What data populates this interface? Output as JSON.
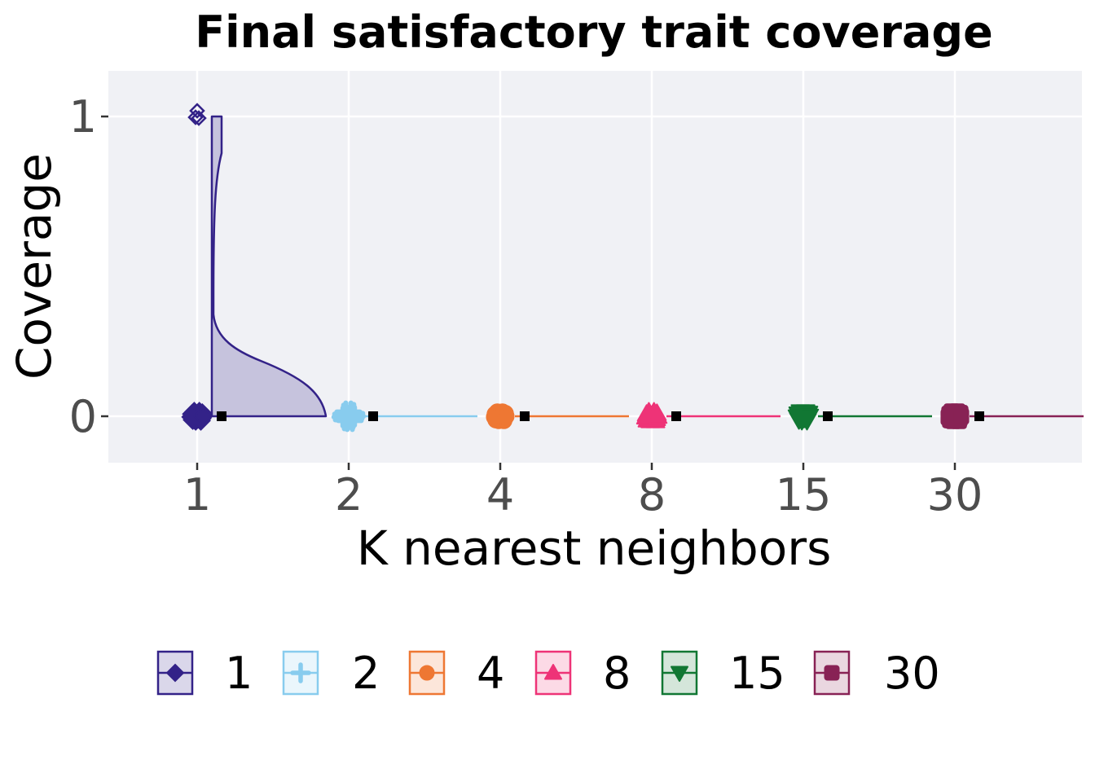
{
  "chart_data": {
    "type": "raincloud",
    "title": "Final satisfactory trait coverage",
    "xlabel": "K nearest neighbors",
    "ylabel": "Coverage",
    "categories": [
      "1",
      "2",
      "4",
      "8",
      "15",
      "30"
    ],
    "yticks": [
      0,
      1
    ],
    "ylim": [
      -0.15,
      1.15
    ],
    "grid": true,
    "legend_position": "bottom",
    "series": [
      {
        "name": "1",
        "color": "#332288",
        "marker": "diamond",
        "values_mode": 0,
        "outliers": [
          1.0,
          1.0,
          1.0
        ],
        "density_peak_at": 0,
        "has_mass_at": 1
      },
      {
        "name": "2",
        "color": "#88CCEE",
        "marker": "plus",
        "values_mode": 0,
        "outliers": []
      },
      {
        "name": "4",
        "color": "#EE7733",
        "marker": "circle",
        "values_mode": 0,
        "outliers": []
      },
      {
        "name": "8",
        "color": "#EE3377",
        "marker": "triangle-up",
        "values_mode": 0,
        "outliers": []
      },
      {
        "name": "15",
        "color": "#117733",
        "marker": "triangle-down",
        "values_mode": 0,
        "outliers": []
      },
      {
        "name": "30",
        "color": "#882255",
        "marker": "square",
        "values_mode": 0,
        "outliers": []
      }
    ],
    "colors": {
      "panel_bg": "#f0f1f5",
      "grid": "#ffffff",
      "median_marker": "#000000"
    }
  }
}
